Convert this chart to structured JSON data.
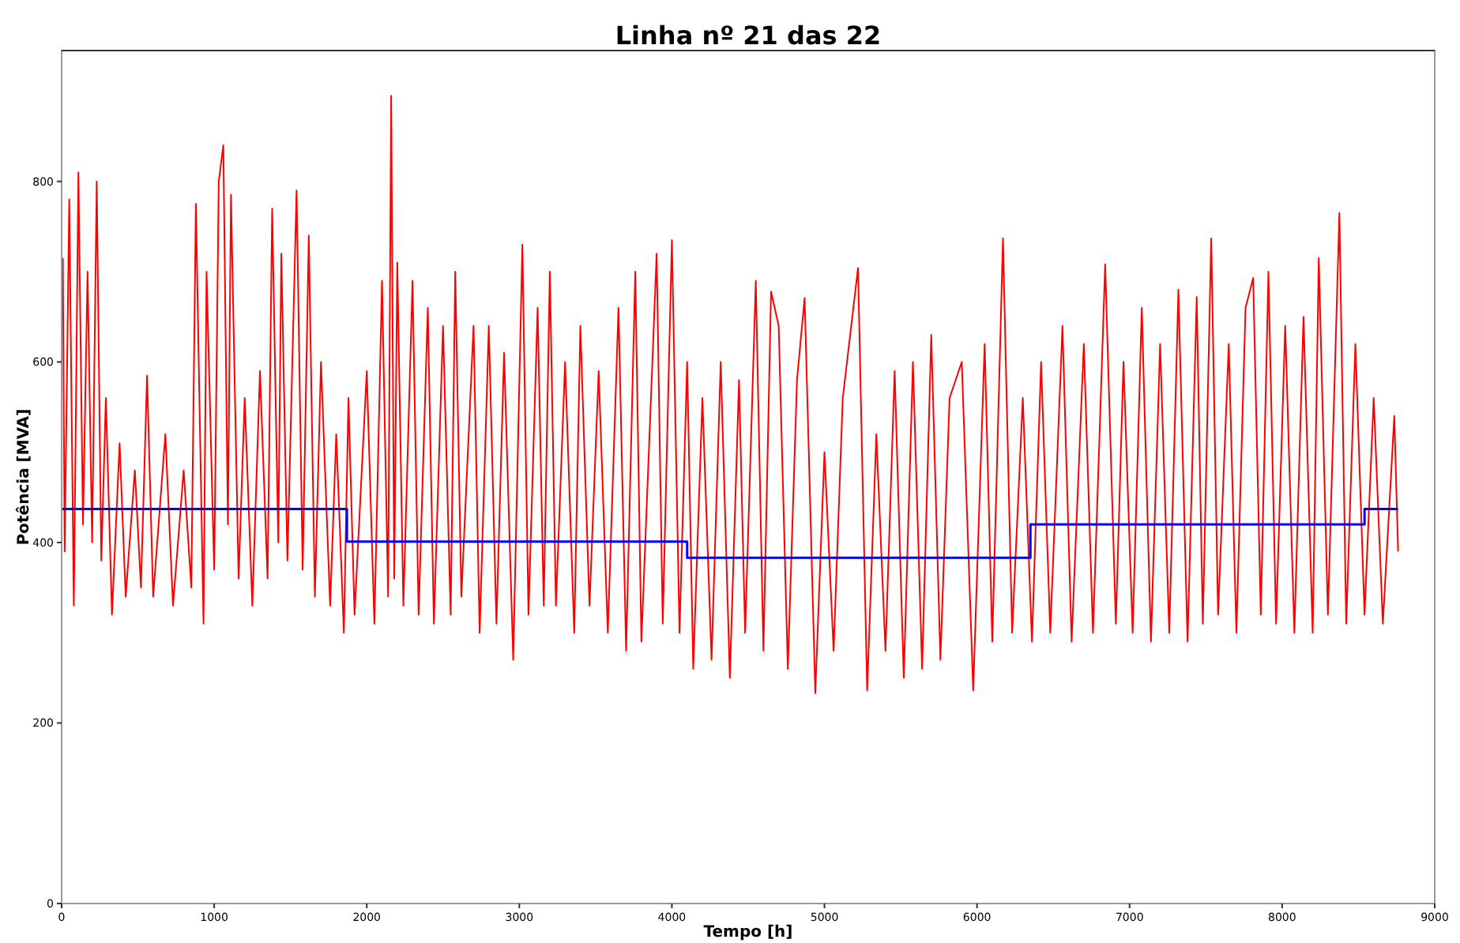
{
  "chart_data": {
    "type": "line",
    "title": "Linha nº 21 das 22",
    "xlabel": "Tempo [h]",
    "ylabel": "Potência [MVA]",
    "xlim": [
      0,
      9000
    ],
    "xticks": [
      0,
      1000,
      2000,
      3000,
      4000,
      5000,
      6000,
      7000,
      8000,
      9000
    ],
    "ylim": [
      0,
      945
    ],
    "yticks": [
      0,
      200,
      400,
      600,
      800
    ],
    "grid": false,
    "series": [
      {
        "color": "#ff0000",
        "x": [
          8,
          20,
          50,
          80,
          110,
          140,
          170,
          200,
          230,
          260,
          290,
          330,
          380,
          420,
          480,
          520,
          560,
          600,
          680,
          730,
          800,
          850,
          880,
          930,
          950,
          1000,
          1030,
          1060,
          1090,
          1110,
          1160,
          1200,
          1250,
          1300,
          1350,
          1380,
          1420,
          1440,
          1480,
          1540,
          1580,
          1620,
          1660,
          1700,
          1760,
          1800,
          1850,
          1880,
          1920,
          2000,
          2050,
          2100,
          2140,
          2160,
          2180,
          2200,
          2240,
          2300,
          2340,
          2400,
          2440,
          2500,
          2550,
          2580,
          2620,
          2700,
          2740,
          2800,
          2850,
          2900,
          2960,
          3020,
          3060,
          3120,
          3160,
          3200,
          3240,
          3300,
          3360,
          3400,
          3460,
          3520,
          3580,
          3650,
          3700,
          3760,
          3800,
          3900,
          3940,
          4000,
          4050,
          4100,
          4140,
          4200,
          4260,
          4320,
          4380,
          4440,
          4480,
          4550,
          4600,
          4650,
          4700,
          4760,
          4820,
          4870,
          4940,
          5000,
          5060,
          5120,
          5220,
          5280,
          5340,
          5400,
          5460,
          5520,
          5580,
          5640,
          5700,
          5760,
          5820,
          5900,
          5975,
          6050,
          6100,
          6170,
          6230,
          6300,
          6360,
          6420,
          6480,
          6560,
          6620,
          6700,
          6760,
          6840,
          6910,
          6960,
          7020,
          7080,
          7140,
          7200,
          7260,
          7320,
          7380,
          7440,
          7480,
          7535,
          7580,
          7650,
          7700,
          7760,
          7810,
          7860,
          7910,
          7960,
          8020,
          8080,
          8140,
          8200,
          8240,
          8300,
          8375,
          8420,
          8480,
          8540,
          8600,
          8660,
          8735,
          8760
        ],
        "values": [
          715,
          390,
          780,
          330,
          810,
          420,
          700,
          400,
          800,
          380,
          560,
          320,
          510,
          340,
          480,
          350,
          585,
          340,
          520,
          330,
          480,
          350,
          775,
          310,
          700,
          370,
          800,
          840,
          420,
          785,
          360,
          560,
          330,
          590,
          360,
          770,
          400,
          720,
          380,
          790,
          370,
          740,
          340,
          600,
          330,
          520,
          300,
          560,
          320,
          590,
          310,
          690,
          340,
          895,
          360,
          710,
          330,
          690,
          320,
          660,
          310,
          640,
          320,
          700,
          340,
          640,
          300,
          640,
          310,
          610,
          270,
          730,
          320,
          660,
          330,
          700,
          330,
          600,
          300,
          640,
          330,
          590,
          300,
          660,
          280,
          700,
          290,
          720,
          310,
          735,
          300,
          600,
          260,
          560,
          270,
          600,
          250,
          580,
          300,
          690,
          280,
          678,
          640,
          260,
          580,
          671,
          233,
          500,
          280,
          560,
          704,
          236,
          520,
          280,
          590,
          250,
          600,
          260,
          630,
          270,
          560,
          600,
          236,
          620,
          290,
          737,
          300,
          560,
          290,
          600,
          300,
          640,
          290,
          620,
          300,
          708,
          310,
          600,
          300,
          660,
          290,
          620,
          300,
          680,
          290,
          672,
          310,
          737,
          320,
          620,
          300,
          660,
          693,
          320,
          700,
          310,
          640,
          300,
          650,
          300,
          715,
          320,
          765,
          310,
          620,
          320,
          560,
          310,
          540,
          390
        ]
      },
      {
        "type": "step",
        "color": "#0000ff",
        "x": [
          0,
          1870,
          4100,
          6350,
          8540,
          8760
        ],
        "values": [
          437,
          401,
          383,
          420,
          437,
          437
        ]
      }
    ]
  }
}
